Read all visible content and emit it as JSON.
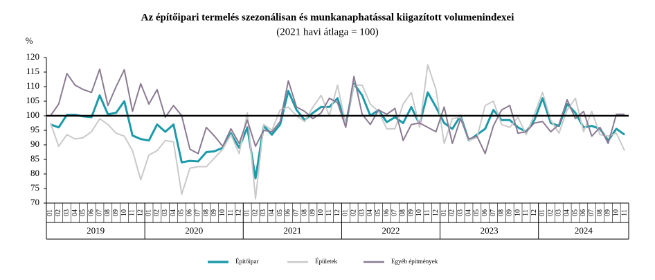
{
  "chart_data": {
    "type": "line",
    "title": "Az építőipari  termelés szezonálisan és munkanaphatással kiigazított volumenindexei",
    "subtitle": "(2021 havi átlaga = 100)",
    "y_label": "%",
    "categories": [
      "01",
      "02",
      "03",
      "04",
      "05",
      "06",
      "07",
      "08",
      "09",
      "10",
      "11",
      "12",
      "01",
      "02",
      "03",
      "04",
      "05",
      "06",
      "07",
      "08",
      "09",
      "10",
      "11",
      "12",
      "01",
      "02",
      "03",
      "04",
      "05",
      "06",
      "07",
      "08",
      "09",
      "10",
      "11",
      "12",
      "01",
      "02",
      "03",
      "04",
      "05",
      "06",
      "07",
      "08",
      "09",
      "10",
      "11",
      "12",
      "01",
      "02",
      "03",
      "04",
      "05",
      "06",
      "07",
      "08",
      "09",
      "10",
      "11",
      "12",
      "01",
      "02",
      "03",
      "04",
      "05",
      "06",
      "07",
      "08",
      "09",
      "10",
      "11"
    ],
    "years": [
      "2019",
      "2020",
      "2021",
      "2022",
      "2023",
      "2024"
    ],
    "ylim": [
      70,
      120
    ],
    "yticks": [
      70,
      75,
      80,
      85,
      90,
      95,
      100,
      105,
      110,
      115,
      120
    ],
    "reference_line": 100,
    "legend": "bottom",
    "series": [
      {
        "name": "Építőipar",
        "color": "#1b9aaa",
        "width": 3,
        "values": [
          97,
          96,
          100.3,
          100.3,
          99.8,
          99.5,
          107,
          100.5,
          101,
          105,
          93.2,
          92,
          91.5,
          97,
          94.5,
          97,
          84,
          84.5,
          84.3,
          87.5,
          87.8,
          89,
          94,
          89,
          96,
          78.5,
          96.5,
          93.5,
          97,
          108.5,
          102,
          98.5,
          101,
          103,
          103,
          106,
          97,
          111,
          107,
          100,
          102,
          97.8,
          99.5,
          97.5,
          103,
          97,
          108,
          103,
          97.5,
          95.5,
          100,
          91.5,
          93.5,
          95.5,
          102,
          98.5,
          98.5,
          96,
          94.5,
          98.5,
          106,
          97.5,
          96.5,
          104,
          101,
          96,
          96.5,
          95.5,
          91.5,
          95.5,
          93.5
        ]
      },
      {
        "name": "Épületek",
        "color": "#c9c9c9",
        "width": 2,
        "values": [
          97.5,
          89.5,
          93.5,
          92,
          92.5,
          94.5,
          99,
          97,
          94,
          93,
          88,
          78,
          86.5,
          88,
          91.5,
          91,
          73,
          82,
          82.5,
          82.5,
          85.5,
          88.5,
          93.5,
          87,
          101,
          71.5,
          97,
          95,
          102,
          103,
          100,
          98,
          103,
          107,
          100,
          110.5,
          97,
          110.5,
          110.5,
          104,
          101.5,
          95.5,
          95.5,
          104,
          108,
          96,
          117.5,
          109,
          90.5,
          99,
          99.5,
          91.5,
          92.5,
          103.5,
          105,
          97,
          96,
          99.5,
          93.5,
          100.5,
          108,
          98.5,
          94,
          102,
          106,
          94.5,
          101.5,
          93.5,
          93,
          94,
          88
        ]
      },
      {
        "name": "Egyéb építmények",
        "color": "#8a7a92",
        "width": 2,
        "values": [
          100,
          104,
          114.5,
          110.5,
          109,
          108,
          116,
          103.5,
          110,
          115.8,
          101.5,
          111,
          104,
          109,
          99.5,
          103.5,
          100,
          88.5,
          87,
          96,
          93,
          89.5,
          95.5,
          90.5,
          98.5,
          89.5,
          95,
          94.5,
          98,
          112,
          103,
          101.5,
          99,
          101,
          106,
          104.5,
          96,
          113.5,
          100.5,
          97,
          102,
          100.5,
          102.5,
          91.5,
          97,
          97.5,
          96,
          94.5,
          103,
          90.5,
          99,
          92,
          93,
          87,
          96.5,
          102,
          103.5,
          94,
          94.5,
          97.5,
          98,
          94.5,
          97,
          105.5,
          99,
          101.5,
          93,
          96,
          90.5,
          100.5,
          100.5
        ]
      }
    ]
  }
}
